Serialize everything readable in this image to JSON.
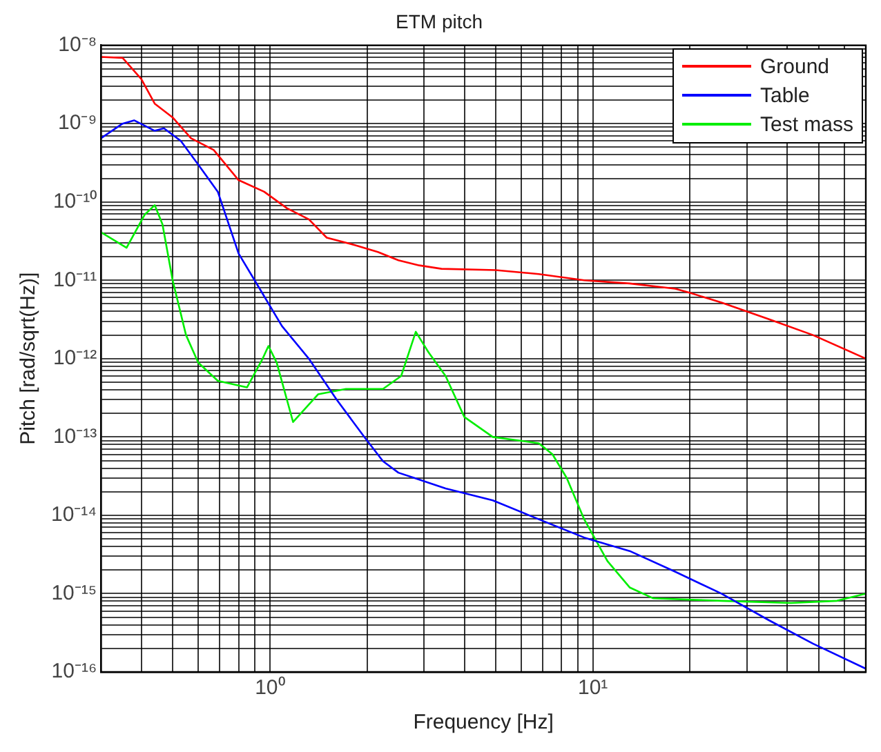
{
  "chart_data": {
    "type": "line",
    "title": "ETM pitch",
    "xlabel": "Frequency [Hz]",
    "ylabel": "Pitch [rad/sqrt(Hz)]",
    "log": "xy",
    "grid": true,
    "legend": "top right",
    "marker": "none",
    "line_style": "solid",
    "xlim": [
      0.3,
      70
    ],
    "ylim": [
      1e-16,
      1e-08
    ],
    "xticks": [
      {
        "value": 0.3,
        "label": null
      },
      {
        "value": 0.4,
        "label": null
      },
      {
        "value": 0.5,
        "label": null
      },
      {
        "value": 0.6,
        "label": null
      },
      {
        "value": 0.7,
        "label": null
      },
      {
        "value": 0.8,
        "label": null
      },
      {
        "value": 0.9,
        "label": null
      },
      {
        "value": 1,
        "label": "10⁰"
      },
      {
        "value": 2,
        "label": null
      },
      {
        "value": 3,
        "label": null
      },
      {
        "value": 4,
        "label": null
      },
      {
        "value": 5,
        "label": null
      },
      {
        "value": 6,
        "label": null
      },
      {
        "value": 7,
        "label": null
      },
      {
        "value": 8,
        "label": null
      },
      {
        "value": 9,
        "label": null
      },
      {
        "value": 10,
        "label": "10¹"
      },
      {
        "value": 20,
        "label": null
      },
      {
        "value": 30,
        "label": null
      },
      {
        "value": 40,
        "label": null
      },
      {
        "value": 50,
        "label": null
      },
      {
        "value": 60,
        "label": null
      },
      {
        "value": 70,
        "label": null
      }
    ],
    "yticks": [
      {
        "value": 1e-16,
        "label": "10⁻¹⁶"
      },
      {
        "value": 2e-16,
        "label": null
      },
      {
        "value": 3e-16,
        "label": null
      },
      {
        "value": 4e-16,
        "label": null
      },
      {
        "value": 5e-16,
        "label": null
      },
      {
        "value": 6e-16,
        "label": null
      },
      {
        "value": 7e-16,
        "label": null
      },
      {
        "value": 8e-16,
        "label": null
      },
      {
        "value": 9e-16,
        "label": null
      },
      {
        "value": 1e-15,
        "label": "10⁻¹⁵"
      },
      {
        "value": 2e-15,
        "label": null
      },
      {
        "value": 3e-15,
        "label": null
      },
      {
        "value": 4e-15,
        "label": null
      },
      {
        "value": 5e-15,
        "label": null
      },
      {
        "value": 6e-15,
        "label": null
      },
      {
        "value": 7e-15,
        "label": null
      },
      {
        "value": 8e-15,
        "label": null
      },
      {
        "value": 9e-15,
        "label": null
      },
      {
        "value": 1e-14,
        "label": "10⁻¹⁴"
      },
      {
        "value": 2e-14,
        "label": null
      },
      {
        "value": 3e-14,
        "label": null
      },
      {
        "value": 4e-14,
        "label": null
      },
      {
        "value": 5e-14,
        "label": null
      },
      {
        "value": 6e-14,
        "label": null
      },
      {
        "value": 7e-14,
        "label": null
      },
      {
        "value": 8e-14,
        "label": null
      },
      {
        "value": 9e-14,
        "label": null
      },
      {
        "value": 1e-13,
        "label": "10⁻¹³"
      },
      {
        "value": 2e-13,
        "label": null
      },
      {
        "value": 3e-13,
        "label": null
      },
      {
        "value": 4e-13,
        "label": null
      },
      {
        "value": 5e-13,
        "label": null
      },
      {
        "value": 6e-13,
        "label": null
      },
      {
        "value": 7e-13,
        "label": null
      },
      {
        "value": 8e-13,
        "label": null
      },
      {
        "value": 9e-13,
        "label": null
      },
      {
        "value": 1e-12,
        "label": "10⁻¹²"
      },
      {
        "value": 2e-12,
        "label": null
      },
      {
        "value": 3e-12,
        "label": null
      },
      {
        "value": 4e-12,
        "label": null
      },
      {
        "value": 5e-12,
        "label": null
      },
      {
        "value": 6e-12,
        "label": null
      },
      {
        "value": 7e-12,
        "label": null
      },
      {
        "value": 8e-12,
        "label": null
      },
      {
        "value": 9e-12,
        "label": null
      },
      {
        "value": 1e-11,
        "label": "10⁻¹¹"
      },
      {
        "value": 2e-11,
        "label": null
      },
      {
        "value": 3e-11,
        "label": null
      },
      {
        "value": 4e-11,
        "label": null
      },
      {
        "value": 5e-11,
        "label": null
      },
      {
        "value": 6e-11,
        "label": null
      },
      {
        "value": 7e-11,
        "label": null
      },
      {
        "value": 8e-11,
        "label": null
      },
      {
        "value": 9e-11,
        "label": null
      },
      {
        "value": 1e-10,
        "label": "10⁻¹⁰"
      },
      {
        "value": 2e-10,
        "label": null
      },
      {
        "value": 3e-10,
        "label": null
      },
      {
        "value": 4e-10,
        "label": null
      },
      {
        "value": 5e-10,
        "label": null
      },
      {
        "value": 6e-10,
        "label": null
      },
      {
        "value": 7e-10,
        "label": null
      },
      {
        "value": 8e-10,
        "label": null
      },
      {
        "value": 9e-10,
        "label": null
      },
      {
        "value": 1e-09,
        "label": "10⁻⁹"
      },
      {
        "value": 2e-09,
        "label": null
      },
      {
        "value": 3e-09,
        "label": null
      },
      {
        "value": 4e-09,
        "label": null
      },
      {
        "value": 5e-09,
        "label": null
      },
      {
        "value": 6e-09,
        "label": null
      },
      {
        "value": 7e-09,
        "label": null
      },
      {
        "value": 8e-09,
        "label": null
      },
      {
        "value": 9e-09,
        "label": null
      },
      {
        "value": 1e-08,
        "label": "10⁻⁸"
      }
    ],
    "series": [
      {
        "name": "Ground",
        "color": "#ff0000",
        "x": [
          0.3,
          0.35,
          0.4,
          0.44,
          0.5,
          0.57,
          0.67,
          0.8,
          0.96,
          1.13,
          1.32,
          1.5,
          1.84,
          2.16,
          2.5,
          2.9,
          3.4,
          5,
          6.8,
          9.4,
          13,
          18,
          20,
          25,
          35,
          48,
          70
        ],
        "values": [
          7.1e-09,
          6.9e-09,
          3.7e-09,
          1.8e-09,
          1.2e-09,
          6.5e-10,
          4.6e-10,
          1.9e-10,
          1.35e-10,
          8.3e-11,
          6e-11,
          3.5e-11,
          2.8e-11,
          2.3e-11,
          1.8e-11,
          1.55e-11,
          1.4e-11,
          1.35e-11,
          1.2e-11,
          1e-11,
          9.1e-12,
          7.8e-12,
          6.9e-12,
          5.2e-12,
          3.2e-12,
          2e-12,
          1e-12
        ]
      },
      {
        "name": "Table",
        "color": "#0000ff",
        "x": [
          0.3,
          0.35,
          0.38,
          0.44,
          0.47,
          0.53,
          0.6,
          0.69,
          0.8,
          0.93,
          1.09,
          1.32,
          1.61,
          1.96,
          2.24,
          2.5,
          2.8,
          3.5,
          4.9,
          6.8,
          9.4,
          13,
          18,
          25,
          35,
          48,
          70
        ],
        "values": [
          6.5e-10,
          1e-09,
          1.1e-09,
          8.1e-10,
          8.7e-10,
          6e-10,
          3e-10,
          1.35e-10,
          2.2e-11,
          7.8e-12,
          2.6e-12,
          1e-12,
          3e-13,
          1e-13,
          4.9e-14,
          3.5e-14,
          3e-14,
          2.2e-14,
          1.55e-14,
          8.9e-15,
          5.2e-15,
          3.5e-15,
          1.9e-15,
          1e-15,
          4.6e-16,
          2.3e-16,
          1.1e-16
        ]
      },
      {
        "name": "Test mass",
        "color": "#00ee00",
        "x": [
          0.3,
          0.36,
          0.41,
          0.44,
          0.465,
          0.5,
          0.55,
          0.6,
          0.69,
          0.85,
          0.95,
          0.99,
          1.05,
          1.18,
          1.41,
          1.72,
          2.24,
          2.55,
          2.83,
          3.1,
          3.5,
          4,
          4.9,
          6.8,
          7.5,
          8.3,
          9.4,
          11.1,
          13,
          15.4,
          25,
          41,
          57,
          70
        ],
        "values": [
          4.1e-11,
          2.6e-11,
          6.9e-11,
          9.1e-11,
          5.2e-11,
          1e-11,
          2e-12,
          8.9e-13,
          5.2e-13,
          4.3e-13,
          1e-12,
          1.45e-12,
          8.9e-13,
          1.55e-13,
          3.5e-13,
          4.1e-13,
          4.1e-13,
          6e-13,
          2.2e-12,
          1.2e-12,
          6e-13,
          1.8e-13,
          1e-13,
          8.3e-14,
          6e-14,
          3e-14,
          8.9e-15,
          2.6e-15,
          1.2e-15,
          8.7e-16,
          8.1e-16,
          7.6e-16,
          8.1e-16,
          1e-15
        ]
      }
    ]
  }
}
